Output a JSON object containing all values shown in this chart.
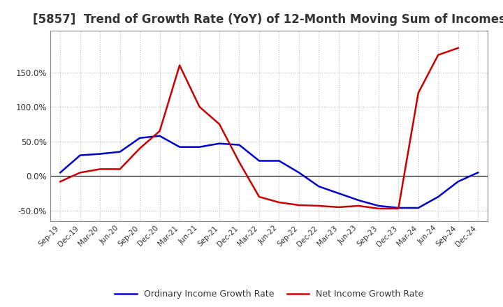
{
  "title": "[5857]  Trend of Growth Rate (YoY) of 12-Month Moving Sum of Incomes",
  "x_labels": [
    "Sep-19",
    "Dec-19",
    "Mar-20",
    "Jun-20",
    "Sep-20",
    "Dec-20",
    "Mar-21",
    "Jun-21",
    "Sep-21",
    "Dec-21",
    "Mar-22",
    "Jun-22",
    "Sep-22",
    "Dec-22",
    "Mar-23",
    "Jun-23",
    "Sep-23",
    "Dec-23",
    "Mar-24",
    "Jun-24",
    "Sep-24",
    "Dec-24"
  ],
  "ordinary_income": [
    5.0,
    30.0,
    32.0,
    35.0,
    55.0,
    58.0,
    42.0,
    42.0,
    47.0,
    45.0,
    22.0,
    22.0,
    5.0,
    -15.0,
    -25.0,
    -35.0,
    -43.0,
    -46.0,
    -46.0,
    -30.0,
    -8.0,
    5.0
  ],
  "net_income": [
    -8.0,
    5.0,
    10.0,
    10.0,
    40.0,
    65.0,
    160.0,
    100.0,
    75.0,
    20.0,
    -30.0,
    -38.0,
    -42.0,
    -43.0,
    -45.0,
    -43.0,
    -47.0,
    -47.0,
    120.0,
    175.0,
    185.0,
    null
  ],
  "ylim": [
    -65,
    210
  ],
  "yticks": [
    -50.0,
    0.0,
    50.0,
    100.0,
    150.0
  ],
  "ordinary_color": "#0000cc",
  "net_color": "#cc0000",
  "background_color": "#ffffff",
  "grid_color": "#bbbbbb",
  "legend_ordinary": "Ordinary Income Growth Rate",
  "legend_net": "Net Income Growth Rate",
  "title_fontsize": 12,
  "title_color": "#333333"
}
